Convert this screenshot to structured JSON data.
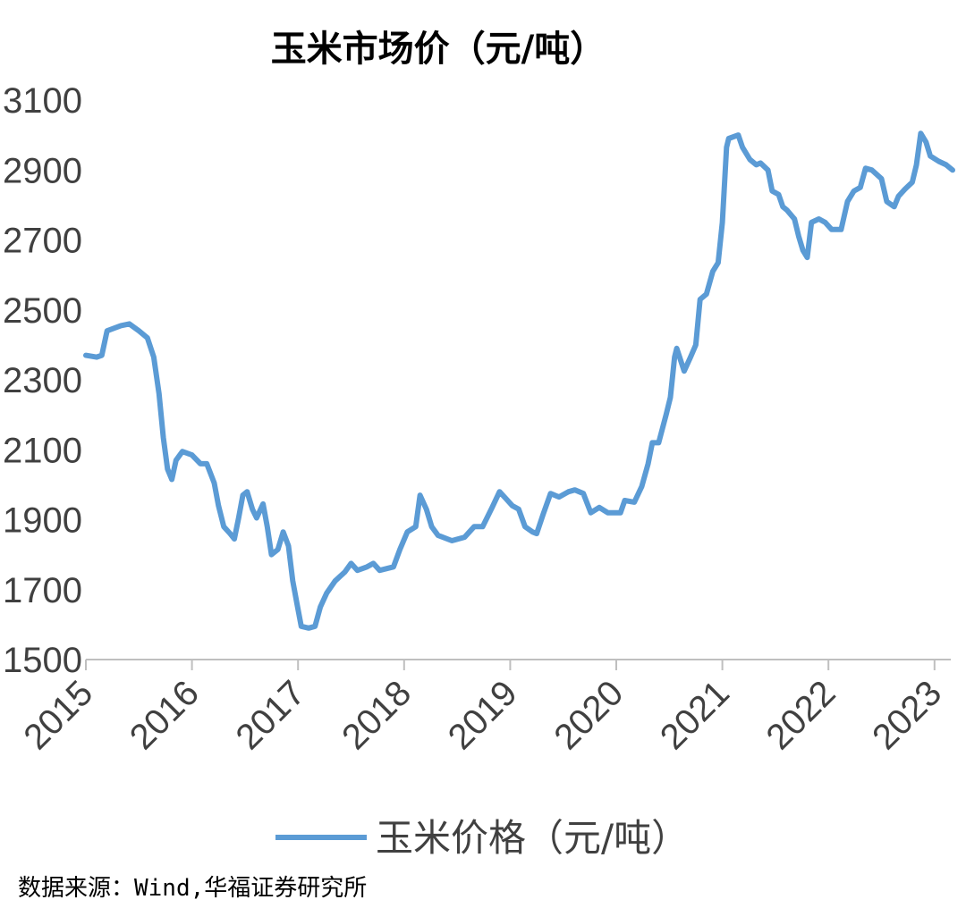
{
  "chart_data": {
    "type": "line",
    "title": "玉米市场价（元/吨）",
    "xlabel": "",
    "ylabel": "",
    "xlim": [
      2015,
      2023.2
    ],
    "ylim": [
      1500,
      3100
    ],
    "yticks": [
      1500,
      1700,
      1900,
      2100,
      2300,
      2500,
      2700,
      2900,
      3100
    ],
    "xticks": [
      "2015",
      "2016",
      "2017",
      "2018",
      "2019",
      "2020",
      "2021",
      "2022",
      "2023"
    ],
    "grid": false,
    "legend_position": "bottom",
    "series": [
      {
        "name": "玉米价格（元/吨）",
        "color": "#5b9bd5",
        "x": [
          2015.0,
          2015.1,
          2015.15,
          2015.2,
          2015.33,
          2015.41,
          2015.5,
          2015.58,
          2015.64,
          2015.69,
          2015.73,
          2015.77,
          2015.81,
          2015.85,
          2015.91,
          2016.0,
          2016.08,
          2016.14,
          2016.21,
          2016.25,
          2016.3,
          2016.36,
          2016.4,
          2016.44,
          2016.48,
          2016.52,
          2016.57,
          2016.61,
          2016.67,
          2016.71,
          2016.75,
          2016.81,
          2016.86,
          2016.91,
          2016.95,
          2016.99,
          2017.03,
          2017.1,
          2017.16,
          2017.21,
          2017.27,
          2017.35,
          2017.44,
          2017.5,
          2017.56,
          2017.65,
          2017.71,
          2017.77,
          2017.9,
          2017.96,
          2018.03,
          2018.11,
          2018.15,
          2018.21,
          2018.26,
          2018.32,
          2018.45,
          2018.57,
          2018.66,
          2018.74,
          2018.83,
          2018.9,
          2018.96,
          2019.02,
          2019.08,
          2019.14,
          2019.21,
          2019.25,
          2019.31,
          2019.38,
          2019.46,
          2019.55,
          2019.61,
          2019.69,
          2019.76,
          2019.84,
          2019.92,
          2020.04,
          2020.08,
          2020.17,
          2020.24,
          2020.3,
          2020.34,
          2020.4,
          2020.47,
          2020.51,
          2020.55,
          2020.57,
          2020.64,
          2020.7,
          2020.75,
          2020.79,
          2020.85,
          2020.91,
          2020.96,
          2021.0,
          2021.04,
          2021.06,
          2021.15,
          2021.19,
          2021.26,
          2021.32,
          2021.36,
          2021.43,
          2021.47,
          2021.53,
          2021.57,
          2021.61,
          2021.68,
          2021.72,
          2021.76,
          2021.8,
          2021.84,
          2021.91,
          2021.97,
          2022.03,
          2022.12,
          2022.18,
          2022.24,
          2022.3,
          2022.35,
          2022.41,
          2022.5,
          2022.55,
          2022.62,
          2022.66,
          2022.72,
          2022.79,
          2022.83,
          2022.87,
          2022.92,
          2022.96,
          2023.04,
          2023.11,
          2023.17
        ],
        "values": [
          2370,
          2365,
          2370,
          2440,
          2455,
          2460,
          2440,
          2420,
          2365,
          2260,
          2135,
          2045,
          2015,
          2070,
          2095,
          2085,
          2060,
          2060,
          2005,
          1940,
          1880,
          1860,
          1845,
          1905,
          1970,
          1980,
          1930,
          1905,
          1945,
          1880,
          1800,
          1815,
          1865,
          1825,
          1725,
          1660,
          1595,
          1590,
          1595,
          1650,
          1690,
          1725,
          1750,
          1775,
          1755,
          1765,
          1775,
          1755,
          1765,
          1815,
          1865,
          1880,
          1970,
          1930,
          1880,
          1855,
          1840,
          1850,
          1880,
          1880,
          1935,
          1980,
          1960,
          1940,
          1930,
          1880,
          1865,
          1860,
          1915,
          1975,
          1965,
          1980,
          1985,
          1975,
          1920,
          1935,
          1920,
          1920,
          1955,
          1950,
          1995,
          2060,
          2120,
          2120,
          2200,
          2250,
          2365,
          2390,
          2325,
          2365,
          2400,
          2530,
          2545,
          2610,
          2635,
          2750,
          2965,
          2990,
          3000,
          2965,
          2930,
          2915,
          2920,
          2900,
          2840,
          2830,
          2795,
          2785,
          2760,
          2710,
          2670,
          2650,
          2750,
          2760,
          2750,
          2730,
          2730,
          2810,
          2840,
          2850,
          2905,
          2900,
          2875,
          2810,
          2795,
          2825,
          2845,
          2865,
          2915,
          3005,
          2980,
          2940,
          2925,
          2915,
          2900
        ]
      }
    ]
  },
  "source": "数据来源：Wind,华福证券研究所"
}
